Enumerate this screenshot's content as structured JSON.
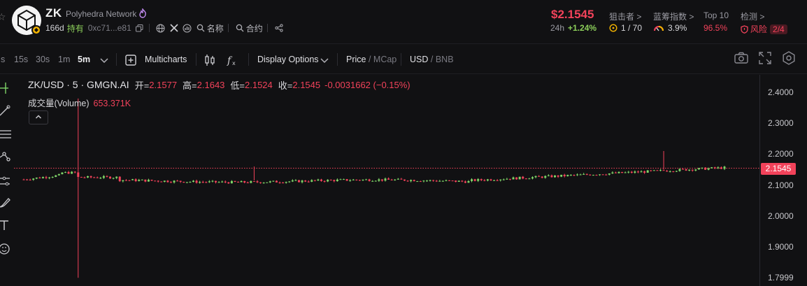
{
  "token": {
    "symbol": "ZK",
    "name": "Polyhedra Network",
    "age": "166d",
    "holding_label": "持有",
    "address": "0xc71...e81",
    "name_label": "名称",
    "contract_label": "合约"
  },
  "market": {
    "price": "$2.1545",
    "change_label": "24h",
    "change_value": "+1.24%"
  },
  "stats": {
    "sniper_label": "狙击者 >",
    "sniper_value": "1 / 70",
    "bluechip_label": "蓝筹指数 >",
    "bluechip_value": "3.9%",
    "top10_label": "Top 10",
    "top10_value": "96.5%",
    "detect_label": "检测 >",
    "risk_label": "风险",
    "risk_value": "2/4"
  },
  "toolbar": {
    "timeframes": [
      "s",
      "15s",
      "30s",
      "1m",
      "5m"
    ],
    "active_timeframe": "5m",
    "multicharts": "Multicharts",
    "display_options": "Display Options",
    "price_label": "Price",
    "mcap_label": "MCap",
    "usd_label": "USD",
    "bnb_label": "BNB"
  },
  "legend": {
    "pair": "ZK/USD · 5 · GMGN.AI",
    "open_label": "开=",
    "open": "2.1577",
    "high_label": "高=",
    "high": "2.1643",
    "low_label": "低=",
    "low": "2.1524",
    "close_label": "收=",
    "close": "2.1545",
    "change": "-0.0031662 (−0.15%)",
    "volume_label": "成交量(Volume)",
    "volume": "653.371K"
  },
  "chart_data": {
    "type": "candlestick",
    "last_price": 2.1545,
    "last_price_label": "2.1545",
    "y_ticks": [
      2.4,
      2.3,
      2.2,
      2.1,
      2.0,
      1.9,
      1.7999
    ],
    "y_tick_labels": [
      "2.4000",
      "2.3000",
      "2.2000",
      "2.1000",
      "2.0000",
      "1.9000",
      "1.7999"
    ],
    "ylim": [
      1.78,
      2.45
    ],
    "candle_count": 220,
    "spikes": [
      {
        "index": 17,
        "high": 2.38,
        "low": 1.8
      },
      {
        "index": 72,
        "high": 2.16,
        "low": 2.115
      },
      {
        "index": 200,
        "high": 2.21,
        "low": 2.15
      }
    ],
    "colors": {
      "up": "#7ed468",
      "down": "#f2425a"
    }
  },
  "colors": {
    "background": "#111113",
    "up": "#8ccf5a",
    "down": "#f2425a"
  }
}
